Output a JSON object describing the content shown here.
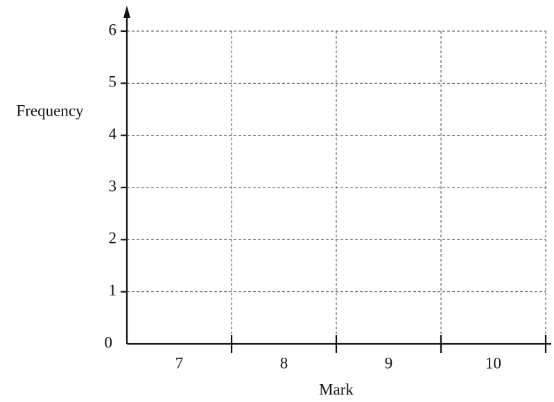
{
  "chart_data": {
    "type": "bar",
    "x_label": "Mark",
    "y_label": "Frequency",
    "categories": [
      "7",
      "8",
      "9",
      "10"
    ],
    "ylim": [
      0,
      6
    ],
    "yticks": [
      0,
      1,
      2,
      3,
      4,
      5,
      6
    ],
    "grid": true
  }
}
